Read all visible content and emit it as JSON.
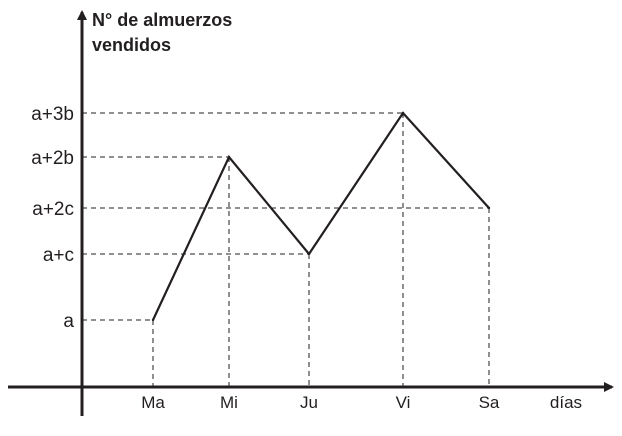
{
  "chart_data": {
    "type": "line",
    "ylabel": [
      "N° de almuerzos",
      "vendidos"
    ],
    "xlabel": "días",
    "categories": [
      "Ma",
      "Mi",
      "Ju",
      "Vi",
      "Sa"
    ],
    "y_levels": [
      "a",
      "a+c",
      "a+2c",
      "a+2b",
      "a+3b"
    ],
    "series": [
      {
        "values": [
          "a",
          "a+2b",
          "a+c",
          "a+3b",
          "a+2c"
        ]
      }
    ],
    "grid": false,
    "guide_lines": "dashed"
  },
  "colors": {
    "line": "#231f20",
    "axis": "#231f20",
    "guides": "#231f20"
  }
}
